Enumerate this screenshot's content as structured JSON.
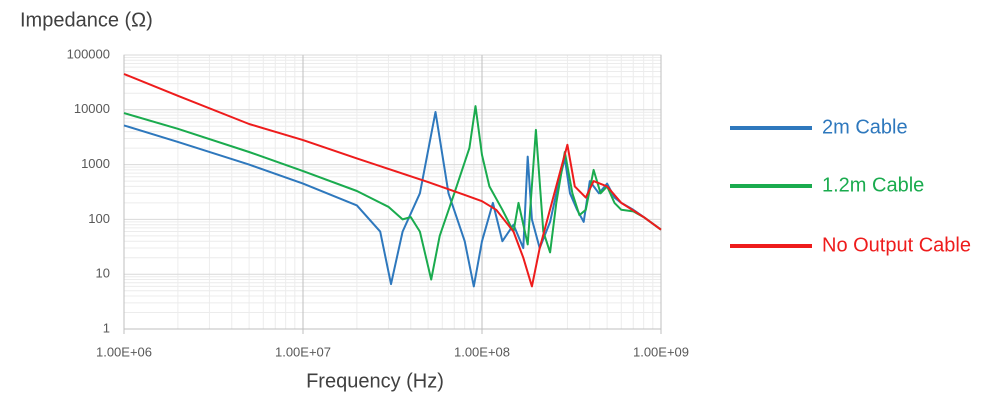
{
  "chart_data": {
    "type": "line",
    "y_label": "Impedance (Ω)",
    "x_label": "Frequency (Hz)",
    "xscale": "log",
    "yscale": "log",
    "xlim": [
      1000000,
      1000000000
    ],
    "ylim": [
      1,
      100000
    ],
    "xticks": [
      {
        "value": 1000000,
        "label": "1.00E+06"
      },
      {
        "value": 10000000,
        "label": "1.00E+07"
      },
      {
        "value": 100000000,
        "label": "1.00E+08"
      },
      {
        "value": 1000000000,
        "label": "1.00E+09"
      }
    ],
    "yticks": [
      1,
      10,
      100,
      1000,
      10000,
      100000
    ],
    "grid": true,
    "minor_grid": true,
    "legend_position": "right",
    "series": [
      {
        "name": "2m Cable",
        "color": "#2e78bd",
        "x": [
          1000000,
          2000000,
          5000000,
          10000000,
          20000000,
          27000000,
          31000000,
          36000000,
          45000000,
          55000000,
          65000000,
          80000000,
          90000000,
          100000000,
          115000000,
          130000000,
          150000000,
          170000000,
          180000000,
          190000000,
          210000000,
          240000000,
          260000000,
          290000000,
          310000000,
          340000000,
          370000000,
          400000000,
          450000000,
          500000000,
          550000000,
          600000000,
          700000000,
          800000000,
          1000000000
        ],
        "values": [
          5200,
          2600,
          1000,
          450,
          180,
          60,
          6.6,
          60,
          300,
          9100,
          300,
          40,
          6,
          40,
          200,
          40,
          80,
          30,
          1400,
          100,
          30,
          90,
          300,
          1300,
          300,
          150,
          90,
          500,
          300,
          450,
          250,
          200,
          150,
          110,
          65
        ]
      },
      {
        "name": "1.2m Cable",
        "color": "#1aab4e",
        "x": [
          1000000,
          2000000,
          5000000,
          10000000,
          20000000,
          30000000,
          36000000,
          40000000,
          45000000,
          52000000,
          58000000,
          70000000,
          85000000,
          92000000,
          100000000,
          110000000,
          130000000,
          150000000,
          160000000,
          180000000,
          200000000,
          220000000,
          240000000,
          260000000,
          290000000,
          320000000,
          350000000,
          380000000,
          420000000,
          460000000,
          500000000,
          550000000,
          600000000,
          700000000,
          800000000,
          1000000000
        ],
        "values": [
          8700,
          4500,
          1700,
          760,
          330,
          170,
          100,
          110,
          60,
          8,
          50,
          300,
          2000,
          11700,
          1500,
          400,
          150,
          60,
          200,
          35,
          4300,
          60,
          25,
          200,
          1700,
          300,
          120,
          150,
          800,
          300,
          400,
          200,
          150,
          140,
          110,
          65
        ]
      },
      {
        "name": "No Output Cable",
        "color": "#ee1c1c",
        "x": [
          1000000,
          2000000,
          5000000,
          10000000,
          20000000,
          50000000,
          80000000,
          100000000,
          120000000,
          150000000,
          170000000,
          190000000,
          210000000,
          250000000,
          300000000,
          330000000,
          380000000,
          420000000,
          500000000,
          600000000,
          800000000,
          1000000000
        ],
        "values": [
          45000,
          18000,
          5500,
          2800,
          1300,
          480,
          280,
          215,
          150,
          60,
          20,
          6,
          30,
          250,
          2300,
          400,
          250,
          500,
          400,
          200,
          110,
          65
        ]
      }
    ]
  }
}
